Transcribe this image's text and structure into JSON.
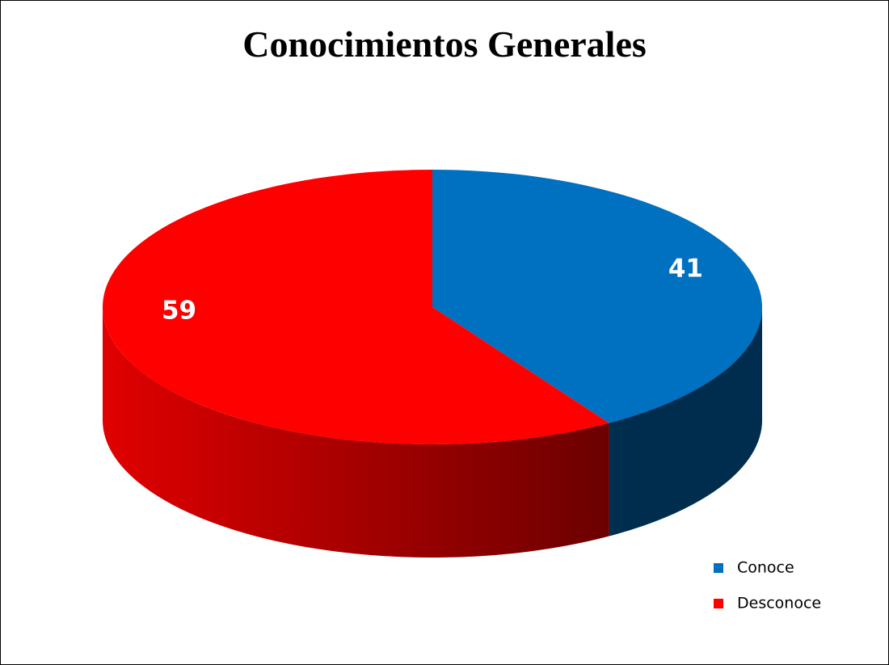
{
  "chart_data": {
    "type": "pie",
    "title": "Conocimientos Generales",
    "categories": [
      "Conoce",
      "Desconoce"
    ],
    "values": [
      41,
      59
    ],
    "colors": [
      "#0070c0",
      "#ff0000"
    ],
    "legend": "bottom-right"
  }
}
